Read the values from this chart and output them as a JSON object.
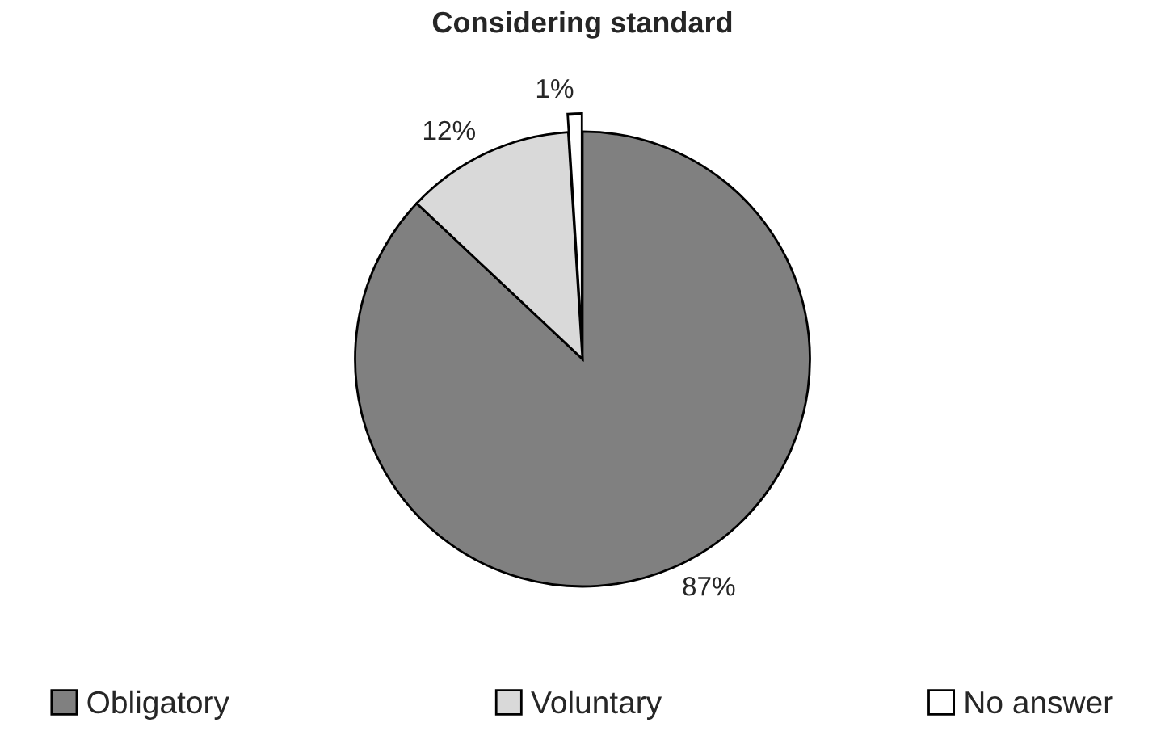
{
  "chart_data": {
    "type": "pie",
    "title": "Considering standard",
    "categories": [
      "Obligatory",
      "Voluntary",
      "No answer"
    ],
    "values": [
      87,
      12,
      1
    ],
    "value_labels": [
      "87%",
      "12%",
      "1%"
    ],
    "colors": [
      "#808080",
      "#d9d9d9",
      "#ffffff"
    ],
    "legend": "bottom"
  }
}
